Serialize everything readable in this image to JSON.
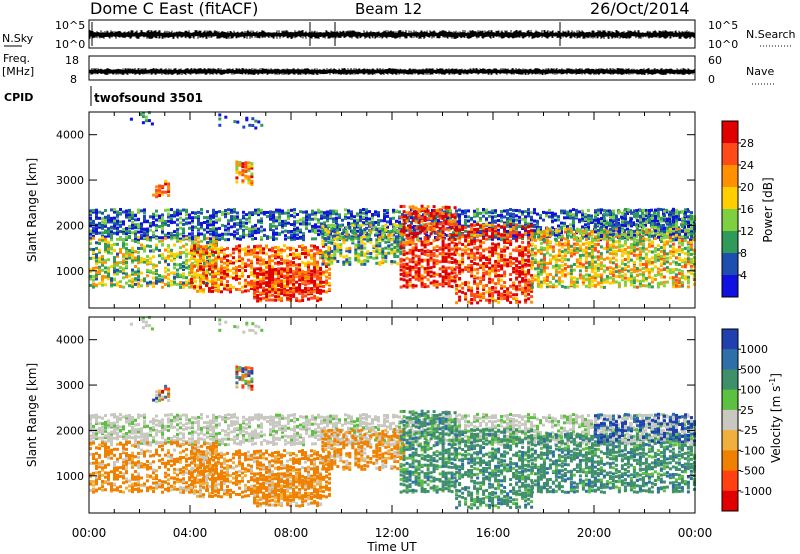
{
  "header": {
    "title": "Dome C East (fitACF)",
    "beam": "Beam 12",
    "date": "26/Oct/2014"
  },
  "top_panels": {
    "nsky": {
      "label": "N.Sky",
      "left_ticks": [
        "10^5",
        "10^0"
      ],
      "right_label": "N.Search",
      "right_ticks": [
        "10^5",
        "10^0"
      ]
    },
    "freq": {
      "label_line1": "Freq.",
      "label_line2": "[MHz]",
      "left_ticks": [
        "18",
        "8"
      ],
      "right_label": "Nave",
      "right_ticks": [
        "60",
        "0"
      ]
    },
    "cpid": {
      "label": "CPID",
      "program": "twofsound 3501"
    }
  },
  "chart_data": [
    {
      "type": "heatmap",
      "title": "",
      "xlabel": "Time UT",
      "ylabel": "Slant Range [km]",
      "x_ticks": [
        "00:00",
        "04:00",
        "08:00",
        "12:00",
        "16:00",
        "20:00",
        "00:00"
      ],
      "x_range_hours": [
        0,
        24
      ],
      "y_ticks": [
        1000,
        2000,
        3000,
        4000
      ],
      "ylim": [
        180,
        4500
      ],
      "colorbar": {
        "label": "Power [dB]",
        "ticks": [
          "28",
          "24",
          "20",
          "16",
          "12",
          "8",
          "4"
        ],
        "colors": [
          "#e00000",
          "#ff4a1a",
          "#ff9000",
          "#ffcf00",
          "#7fd040",
          "#2f9a5a",
          "#1e4fb0",
          "#1010e0"
        ]
      }
    },
    {
      "type": "heatmap",
      "title": "",
      "xlabel": "Time UT",
      "ylabel": "Slant Range [km]",
      "x_ticks": [
        "00:00",
        "04:00",
        "08:00",
        "12:00",
        "16:00",
        "20:00",
        "00:00"
      ],
      "x_range_hours": [
        0,
        24
      ],
      "y_ticks": [
        1000,
        2000,
        3000,
        4000
      ],
      "ylim": [
        180,
        4500
      ],
      "colorbar": {
        "label": "Velocity [m s",
        "label_sup": "-1",
        "label_end": "]",
        "ticks": [
          "1000",
          "500",
          "100",
          "25",
          "-25",
          "-100",
          "-500",
          "-1000"
        ],
        "colors": [
          "#2040b0",
          "#2f6fa8",
          "#3f8f6a",
          "#5cc040",
          "#c8c8c0",
          "#f0b040",
          "#f08000",
          "#ff4010",
          "#e00000"
        ]
      }
    }
  ],
  "colors": {
    "background": "#ffffff",
    "foreground": "#000000"
  }
}
